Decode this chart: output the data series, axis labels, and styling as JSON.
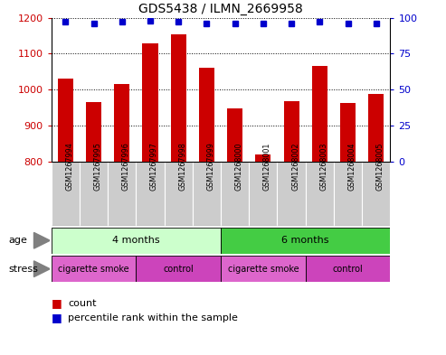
{
  "title": "GDS5438 / ILMN_2669958",
  "samples": [
    "GSM1267994",
    "GSM1267995",
    "GSM1267996",
    "GSM1267997",
    "GSM1267998",
    "GSM1267999",
    "GSM1268000",
    "GSM1268001",
    "GSM1268002",
    "GSM1268003",
    "GSM1268004",
    "GSM1268005"
  ],
  "counts": [
    1030,
    965,
    1015,
    1130,
    1155,
    1060,
    948,
    820,
    968,
    1065,
    962,
    988
  ],
  "percentile_ranks": [
    97,
    96,
    97,
    98,
    97,
    96,
    96,
    96,
    96,
    97,
    96,
    96
  ],
  "ylim_left": [
    800,
    1200
  ],
  "ylim_right": [
    0,
    100
  ],
  "yticks_left": [
    800,
    900,
    1000,
    1100,
    1200
  ],
  "yticks_right": [
    0,
    25,
    50,
    75,
    100
  ],
  "bar_color": "#cc0000",
  "dot_color": "#0000cc",
  "age_groups": [
    {
      "label": "4 months",
      "start": 0,
      "end": 6,
      "color": "#ccffcc"
    },
    {
      "label": "6 months",
      "start": 6,
      "end": 12,
      "color": "#44cc44"
    }
  ],
  "stress_groups": [
    {
      "label": "cigarette smoke",
      "start": 0,
      "end": 3,
      "color": "#dd66cc"
    },
    {
      "label": "control",
      "start": 3,
      "end": 6,
      "color": "#cc44bb"
    },
    {
      "label": "cigarette smoke",
      "start": 6,
      "end": 9,
      "color": "#dd66cc"
    },
    {
      "label": "control",
      "start": 9,
      "end": 12,
      "color": "#cc44bb"
    }
  ],
  "tick_bg_color": "#cccccc",
  "tick_sep_color": "#ffffff",
  "figure_bg": "#ffffff",
  "border_color": "#000000",
  "grid_color": "#000000",
  "legend_count_color": "#cc0000",
  "legend_pct_color": "#0000cc"
}
